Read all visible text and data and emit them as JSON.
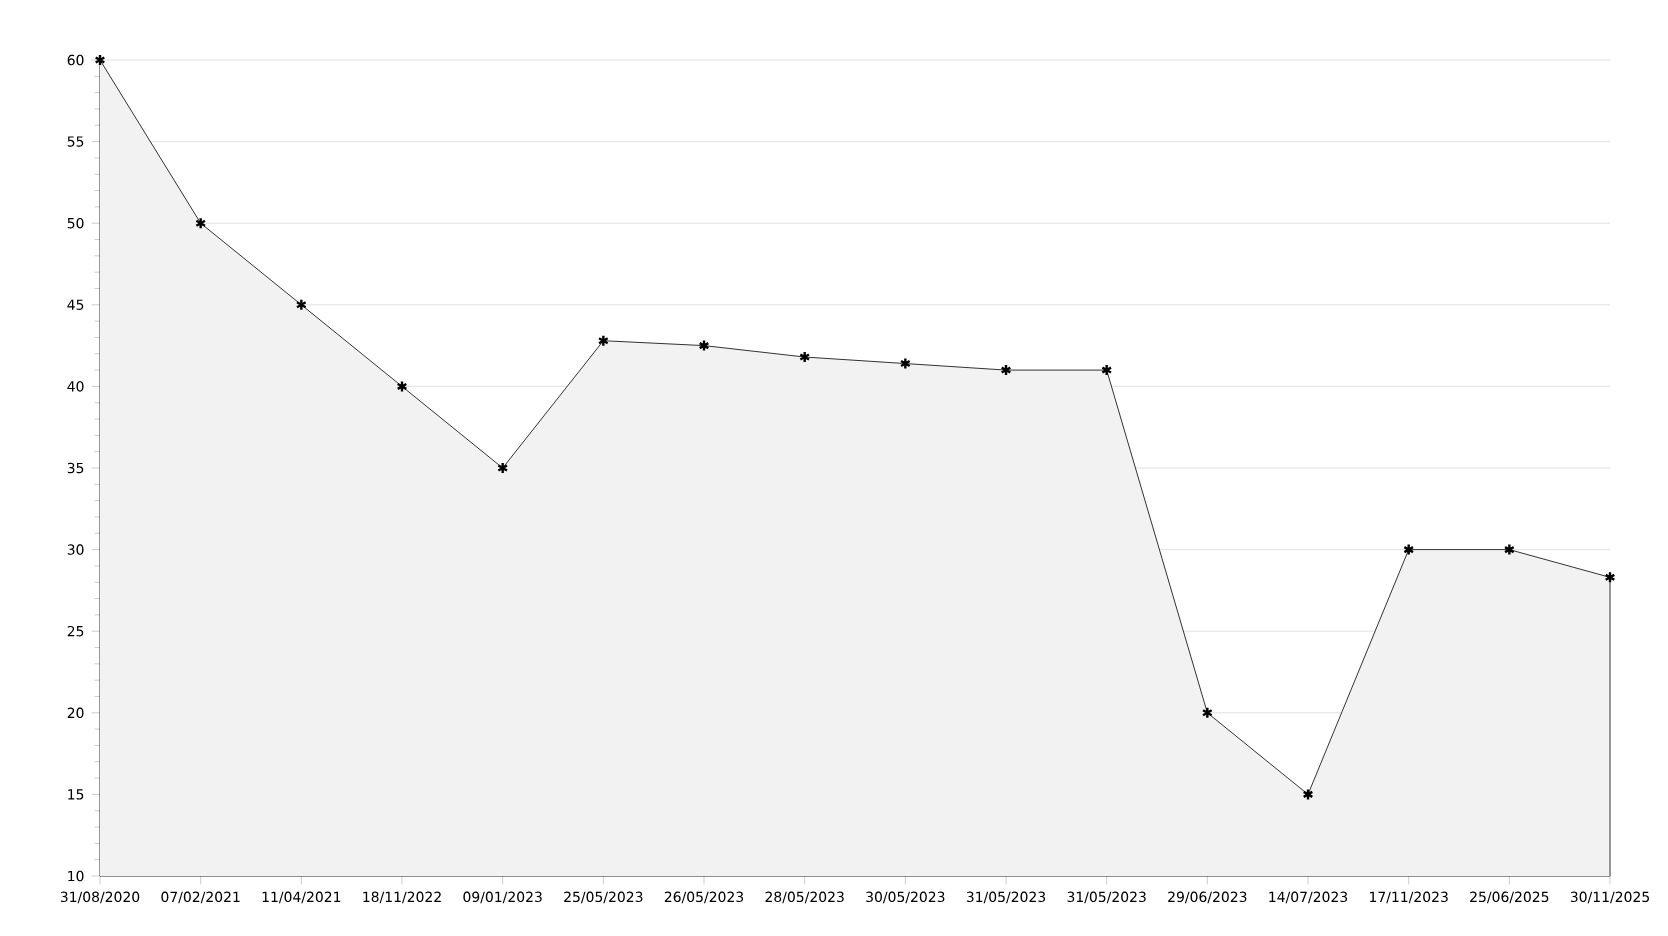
{
  "chart_data": {
    "type": "area",
    "categories": [
      "31/08/2020",
      "07/02/2021",
      "11/04/2021",
      "18/11/2022",
      "09/01/2023",
      "25/05/2023",
      "26/05/2023",
      "28/05/2023",
      "30/05/2023",
      "31/05/2023",
      "31/05/2023",
      "29/06/2023",
      "14/07/2023",
      "17/11/2023",
      "25/06/2025",
      "30/11/2025"
    ],
    "series": [
      {
        "color": "#000000",
        "values": [
          60,
          50,
          45,
          40,
          35,
          42.8,
          42.5,
          41.8,
          41.4,
          41,
          41,
          20,
          15,
          30,
          30,
          28.3
        ]
      }
    ],
    "ylim": [
      10,
      60
    ],
    "yticks": [
      10,
      15,
      20,
      25,
      30,
      35,
      40,
      45,
      50,
      55,
      60
    ],
    "grid": "y",
    "marker": "cross",
    "line_style": "solid"
  }
}
